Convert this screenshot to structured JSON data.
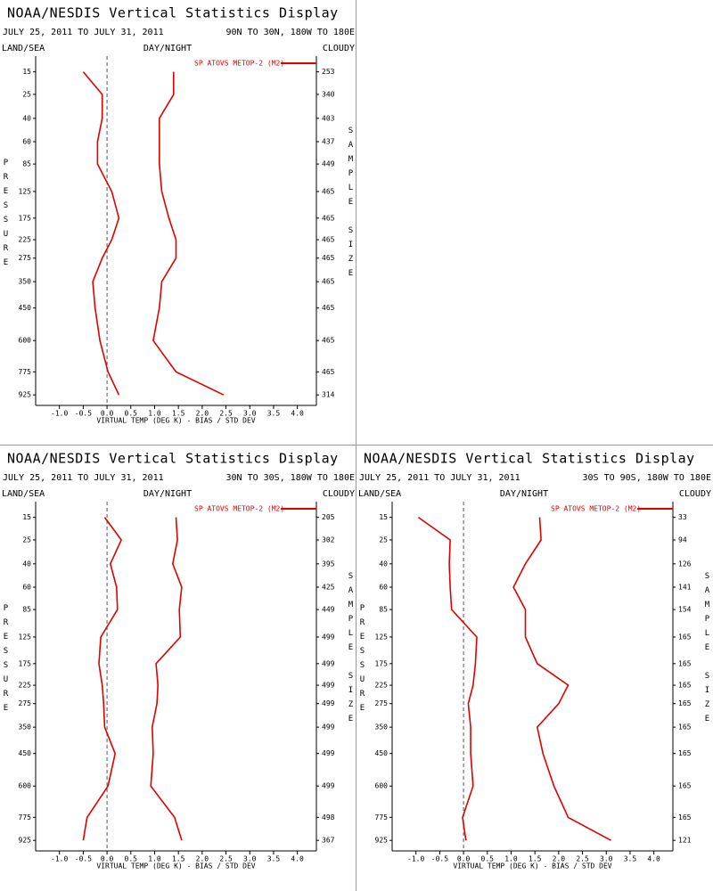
{
  "chart_data": [
    {
      "type": "line",
      "title": "NOAA/NESDIS Vertical Statistics Display",
      "subtitle": "JULY 25, 2011 TO JULY 31, 2011",
      "region": "90N TO 30N, 180W TO 180E",
      "surface": "LAND/SEA",
      "time": "DAY/NIGHT",
      "sky": "CLOUDY",
      "ylabel": "PRESSURE",
      "y2label": "SAMPLE SIZE",
      "xlabel": "VIRTUAL TEMP (DEG K) - BIAS / STD DEV",
      "levels": [
        15,
        25,
        40,
        60,
        85,
        125,
        175,
        225,
        275,
        350,
        450,
        600,
        775,
        925
      ],
      "sample_size": [
        253,
        340,
        403,
        437,
        449,
        465,
        465,
        465,
        465,
        465,
        465,
        465,
        465,
        314
      ],
      "series": [
        {
          "name": "SP ATOVS METOP-2 (M2)",
          "color": "#e00000",
          "bias": [
            -0.5,
            -0.1,
            -0.1,
            -0.2,
            -0.2,
            0.1,
            0.25,
            0.1,
            -0.1,
            -0.3,
            -0.25,
            -0.15,
            0.02,
            0.25
          ],
          "std_dev": [
            1.4,
            1.4,
            1.1,
            1.1,
            1.1,
            1.15,
            1.3,
            1.45,
            1.45,
            1.15,
            1.1,
            0.97,
            1.45,
            2.45
          ]
        }
      ],
      "xlim": [
        -1.5,
        4.4
      ],
      "ylim": [
        10,
        1000
      ],
      "xticks": [
        {
          "value": -1,
          "label": "-1.0"
        },
        -0.5,
        {
          "value": 0,
          "label": "0.0"
        },
        0.5,
        {
          "value": 1,
          "label": "1.0"
        },
        1.5,
        {
          "value": 2,
          "label": "2.0"
        },
        2.5,
        {
          "value": 3,
          "label": "3.0"
        },
        3.5,
        {
          "value": 4,
          "label": "4.0"
        }
      ]
    },
    {
      "type": "line",
      "title": "NOAA/NESDIS Vertical Statistics Display",
      "subtitle": "JULY 25, 2011 TO JULY 31, 2011",
      "region": "30N TO 30S, 180W TO 180E",
      "surface": "LAND/SEA",
      "time": "DAY/NIGHT",
      "sky": "CLOUDY",
      "ylabel": "PRESSURE",
      "y2label": "SAMPLE SIZE",
      "xlabel": "VIRTUAL TEMP (DEG K) - BIAS / STD DEV",
      "levels": [
        15,
        25,
        40,
        60,
        85,
        125,
        175,
        225,
        275,
        350,
        450,
        600,
        775,
        925
      ],
      "sample_size": [
        205,
        302,
        395,
        425,
        449,
        499,
        499,
        499,
        499,
        499,
        499,
        499,
        498,
        367
      ],
      "series": [
        {
          "name": "SP ATOVS METOP-2 (M2)",
          "color": "#e00000",
          "bias": [
            -0.05,
            0.3,
            0.07,
            0.2,
            0.22,
            -0.13,
            -0.17,
            -0.1,
            -0.07,
            -0.05,
            0.17,
            0.02,
            -0.42,
            -0.5
          ],
          "std_dev": [
            1.45,
            1.48,
            1.38,
            1.57,
            1.52,
            1.54,
            1.03,
            1.07,
            1.05,
            0.95,
            0.97,
            0.92,
            1.42,
            1.57
          ]
        }
      ],
      "xlim": [
        -1.5,
        4.4
      ],
      "ylim": [
        10,
        1000
      ],
      "xticks": [
        {
          "value": -1,
          "label": "-1.0"
        },
        -0.5,
        {
          "value": 0,
          "label": "0.0"
        },
        0.5,
        {
          "value": 1,
          "label": "1.0"
        },
        1.5,
        {
          "value": 2,
          "label": "2.0"
        },
        2.5,
        {
          "value": 3,
          "label": "3.0"
        },
        3.5,
        {
          "value": 4,
          "label": "4.0"
        }
      ]
    },
    {
      "type": "line",
      "title": "NOAA/NESDIS Vertical Statistics Display",
      "subtitle": "JULY 25, 2011 TO JULY 31, 2011",
      "region": "30S TO 90S, 180W TO 180E",
      "surface": "LAND/SEA",
      "time": "DAY/NIGHT",
      "sky": "CLOUDY",
      "ylabel": "PRESSURE",
      "y2label": "SAMPLE SIZE",
      "xlabel": "VIRTUAL TEMP (DEG K) - BIAS / STD DEV",
      "levels": [
        15,
        25,
        40,
        60,
        85,
        125,
        175,
        225,
        275,
        350,
        450,
        600,
        775,
        925
      ],
      "sample_size": [
        33,
        94,
        126,
        141,
        154,
        165,
        165,
        165,
        165,
        165,
        165,
        165,
        165,
        121
      ],
      "series": [
        {
          "name": "SP ATOVS METOP-2 (M2)",
          "color": "#e00000",
          "bias": [
            -0.95,
            -0.28,
            -0.3,
            -0.28,
            -0.25,
            0.28,
            0.25,
            0.2,
            0.1,
            0.15,
            0.15,
            0.2,
            -0.02,
            0.05
          ],
          "std_dev": [
            1.6,
            1.63,
            1.3,
            1.05,
            1.3,
            1.3,
            1.55,
            2.2,
            2.0,
            1.55,
            1.67,
            1.9,
            2.2,
            3.1
          ]
        }
      ],
      "xlim": [
        -1.5,
        4.4
      ],
      "ylim": [
        10,
        1000
      ],
      "xticks": [
        {
          "value": -1,
          "label": "-1.0"
        },
        -0.5,
        {
          "value": 0,
          "label": "0.0"
        },
        0.5,
        {
          "value": 1,
          "label": "1.0"
        },
        1.5,
        {
          "value": 2,
          "label": "2.0"
        },
        2.5,
        {
          "value": 3,
          "label": "3.0"
        },
        3.5,
        {
          "value": 4,
          "label": "4.0"
        }
      ]
    }
  ]
}
